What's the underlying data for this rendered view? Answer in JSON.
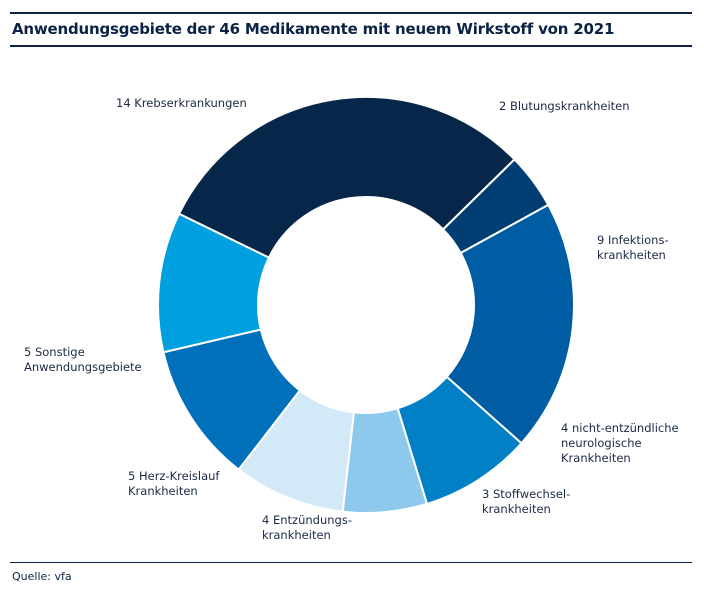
{
  "title": "Anwendungsgebiete der 46 Medikamente mit neuem Wirkstoff von 2021",
  "source": "Quelle: vfa",
  "chart_data": {
    "type": "pie",
    "variant": "donut",
    "title": "Anwendungsgebiete der 46 Medikamente mit neuem Wirkstoff von 2021",
    "total": 46,
    "slices": [
      {
        "name": "Krebserkrankungen",
        "value": 14,
        "label_lines": [
          "14 Krebserkrankungen"
        ],
        "color": "#06274a"
      },
      {
        "name": "Blutungskrankheiten",
        "value": 2,
        "label_lines": [
          "2 Blutungskrankheiten"
        ],
        "color": "#003e73"
      },
      {
        "name": "Infektionskrankheiten",
        "value": 9,
        "label_lines": [
          "9 Infektions-",
          "krankheiten"
        ],
        "color": "#005da3"
      },
      {
        "name": "nicht-entzündliche neurologische Krankheiten",
        "value": 4,
        "label_lines": [
          "4 nicht-entzündliche",
          "neurologische",
          "Krankheiten"
        ],
        "color": "#0280c6"
      },
      {
        "name": "Stoffwechselkrankheiten",
        "value": 3,
        "label_lines": [
          "3 Stoffwechsel-",
          "krankheiten"
        ],
        "color": "#8ec8ec"
      },
      {
        "name": "Entzündungskrankheiten",
        "value": 4,
        "label_lines": [
          "4 Entzündungs-",
          "krankheiten"
        ],
        "color": "#d3e9f8"
      },
      {
        "name": "Herz-Kreislauf Krankheiten",
        "value": 5,
        "label_lines": [
          "5 Herz-Kreislauf",
          "Krankheiten"
        ],
        "color": "#0070bb"
      },
      {
        "name": "Sonstige Anwendungsgebiete",
        "value": 5,
        "label_lines": [
          "5 Sonstige",
          "Anwendungsgebiete"
        ],
        "color": "#009fe0"
      }
    ]
  }
}
